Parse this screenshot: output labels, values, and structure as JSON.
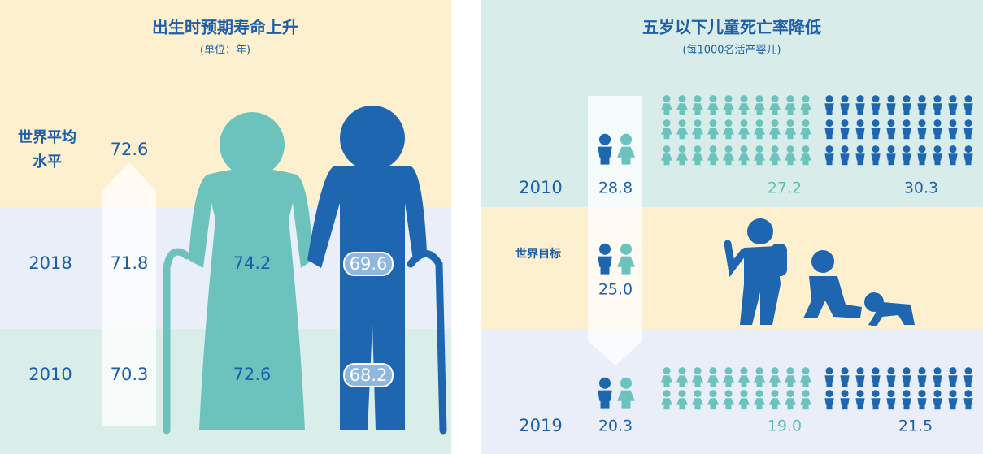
{
  "left": {
    "title": "出生时预期寿命上升",
    "subtitle": "(单位：年)",
    "world_label": [
      "世界平均",
      "水平"
    ],
    "world_value": "72.6",
    "rows": [
      {
        "year": "2018",
        "avg": "71.8",
        "female": "74.2",
        "male": "69.6"
      },
      {
        "year": "2010",
        "avg": "70.3",
        "female": "72.6",
        "male": "68.2"
      }
    ]
  },
  "right": {
    "title": "五岁以下儿童死亡率降低",
    "subtitle": "(每1000名活产婴儿)",
    "rows": [
      {
        "year": "2010",
        "total": "28.8",
        "girls": "27.2",
        "boys": "30.3"
      },
      {
        "label": "世界目标",
        "total": "25.0"
      },
      {
        "year": "2019",
        "total": "20.3",
        "girls": "19.0",
        "boys": "21.5"
      }
    ]
  }
}
